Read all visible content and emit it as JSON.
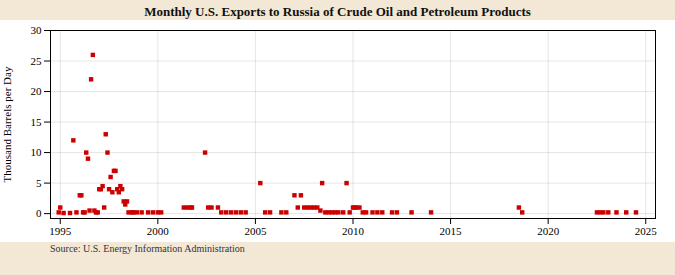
{
  "chart_data": {
    "type": "scatter",
    "title": "Monthly U.S. Exports to Russia of Crude Oil and Petroleum Products",
    "ylabel": "Thousand Barrels per Day",
    "source": "Source: U.S. Energy Information Administration",
    "color": "#cc0000",
    "marker": "square",
    "grid": true,
    "xlim": [
      1994.5,
      2025.5
    ],
    "ylim": [
      -0.8,
      30
    ],
    "xticks": [
      1995,
      2000,
      2005,
      2010,
      2015,
      2020,
      2025
    ],
    "yticks": [
      0,
      5,
      10,
      15,
      20,
      25,
      30
    ],
    "x": [
      1994.92,
      1995.0,
      1995.17,
      1995.5,
      1995.67,
      1995.83,
      1996.0,
      1996.08,
      1996.17,
      1996.25,
      1996.33,
      1996.42,
      1996.5,
      1996.58,
      1996.67,
      1996.75,
      1996.83,
      1996.92,
      1997.0,
      1997.08,
      1997.17,
      1997.25,
      1997.33,
      1997.42,
      1997.5,
      1997.58,
      1997.67,
      1997.75,
      1997.83,
      1997.92,
      1998.0,
      1998.08,
      1998.17,
      1998.25,
      1998.33,
      1998.42,
      1998.5,
      1998.67,
      1998.75,
      1998.92,
      1999.17,
      1999.5,
      1999.75,
      2000.0,
      2000.17,
      2001.33,
      2001.5,
      2001.67,
      2001.75,
      2002.42,
      2002.58,
      2002.75,
      2003.08,
      2003.25,
      2003.5,
      2003.75,
      2004.0,
      2004.25,
      2004.5,
      2005.25,
      2005.5,
      2005.75,
      2006.33,
      2006.58,
      2007.0,
      2007.17,
      2007.33,
      2007.5,
      2007.67,
      2007.83,
      2008.0,
      2008.17,
      2008.33,
      2008.42,
      2008.58,
      2008.75,
      2008.92,
      2009.08,
      2009.25,
      2009.5,
      2009.67,
      2009.83,
      2010.0,
      2010.08,
      2010.17,
      2010.33,
      2010.5,
      2010.67,
      2011.0,
      2011.25,
      2011.5,
      2012.0,
      2012.25,
      2013.0,
      2014.0,
      2018.5,
      2018.67,
      2022.5,
      2022.67,
      2022.83,
      2023.08,
      2023.5,
      2024.0,
      2024.5
    ],
    "values": [
      0.2,
      1.0,
      0.1,
      0.1,
      12.0,
      0.2,
      3.0,
      3.0,
      0.2,
      0.2,
      10.0,
      9.0,
      0.5,
      22.0,
      26.0,
      0.5,
      0.2,
      0.2,
      4.0,
      4.0,
      4.5,
      1.0,
      13.0,
      10.0,
      4.0,
      6.0,
      3.5,
      7.0,
      7.0,
      4.0,
      3.5,
      4.5,
      4.0,
      2.0,
      1.5,
      2.0,
      0.2,
      0.2,
      0.2,
      0.2,
      0.2,
      0.2,
      0.2,
      0.2,
      0.2,
      1.0,
      1.0,
      1.0,
      1.0,
      10.0,
      1.0,
      1.0,
      1.0,
      0.2,
      0.2,
      0.2,
      0.2,
      0.2,
      0.2,
      5.0,
      0.2,
      0.2,
      0.2,
      0.2,
      3.0,
      1.0,
      3.0,
      1.0,
      1.0,
      1.0,
      1.0,
      1.0,
      0.5,
      5.0,
      0.2,
      0.2,
      0.2,
      0.2,
      0.2,
      0.2,
      5.0,
      0.2,
      1.0,
      1.0,
      1.0,
      1.0,
      0.2,
      0.2,
      0.2,
      0.2,
      0.2,
      0.2,
      0.2,
      0.2,
      0.2,
      1.0,
      0.2,
      0.2,
      0.2,
      0.2,
      0.2,
      0.2,
      0.2,
      0.2
    ]
  }
}
